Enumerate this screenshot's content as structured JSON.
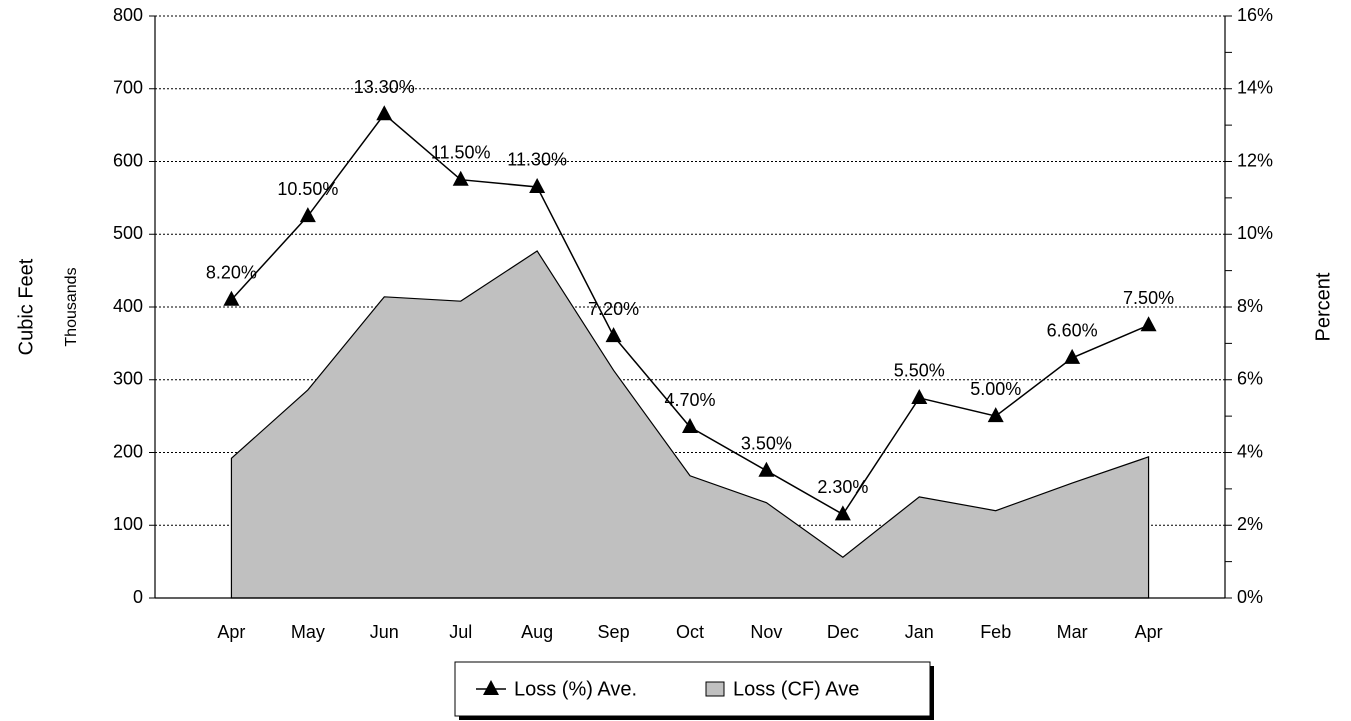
{
  "chart_data": {
    "type": "area-line",
    "categories": [
      "Apr",
      "May",
      "Jun",
      "Jul",
      "Aug",
      "Sep",
      "Oct",
      "Nov",
      "Dec",
      "Jan",
      "Feb",
      "Mar",
      "Apr"
    ],
    "series": [
      {
        "name": "Loss (CF) Ave",
        "type": "area",
        "axis": "y",
        "color": "#c0c0c0",
        "values": [
          192,
          286,
          414,
          408,
          477,
          313,
          168,
          131,
          56,
          139,
          120,
          158,
          194
        ]
      },
      {
        "name": "Loss (%) Ave.",
        "type": "line",
        "axis": "y2",
        "color": "#000000",
        "values": [
          8.2,
          10.5,
          13.3,
          11.5,
          11.3,
          7.2,
          4.7,
          3.5,
          2.3,
          5.5,
          5.0,
          6.6,
          7.5
        ],
        "value_labels": [
          "8.20%",
          "10.50%",
          "13.30%",
          "11.50%",
          "11.30%",
          "7.20%",
          "4.70%",
          "3.50%",
          "2.30%",
          "5.50%",
          "5.00%",
          "6.60%",
          "7.50%"
        ]
      }
    ],
    "ylabel": "Cubic Feet",
    "ylabel_sub": "Thousands",
    "y2label": "Percent",
    "ylim": [
      0,
      800
    ],
    "yticks": [
      0,
      100,
      200,
      300,
      400,
      500,
      600,
      700,
      800
    ],
    "y2lim": [
      0,
      16
    ],
    "y2ticks": [
      {
        "value": 0,
        "label": "0%"
      },
      {
        "value": 2,
        "label": "2%"
      },
      {
        "value": 4,
        "label": "4%"
      },
      {
        "value": 6,
        "label": "6%"
      },
      {
        "value": 8,
        "label": "8%"
      },
      {
        "value": 10,
        "label": "10%"
      },
      {
        "value": 12,
        "label": "12%"
      },
      {
        "value": 14,
        "label": "14%"
      },
      {
        "value": 16,
        "label": "16%"
      }
    ],
    "y2_minor_ticks": [
      1,
      3,
      5,
      7,
      9,
      11,
      13,
      15
    ],
    "grid": true,
    "legend": "bottom"
  }
}
